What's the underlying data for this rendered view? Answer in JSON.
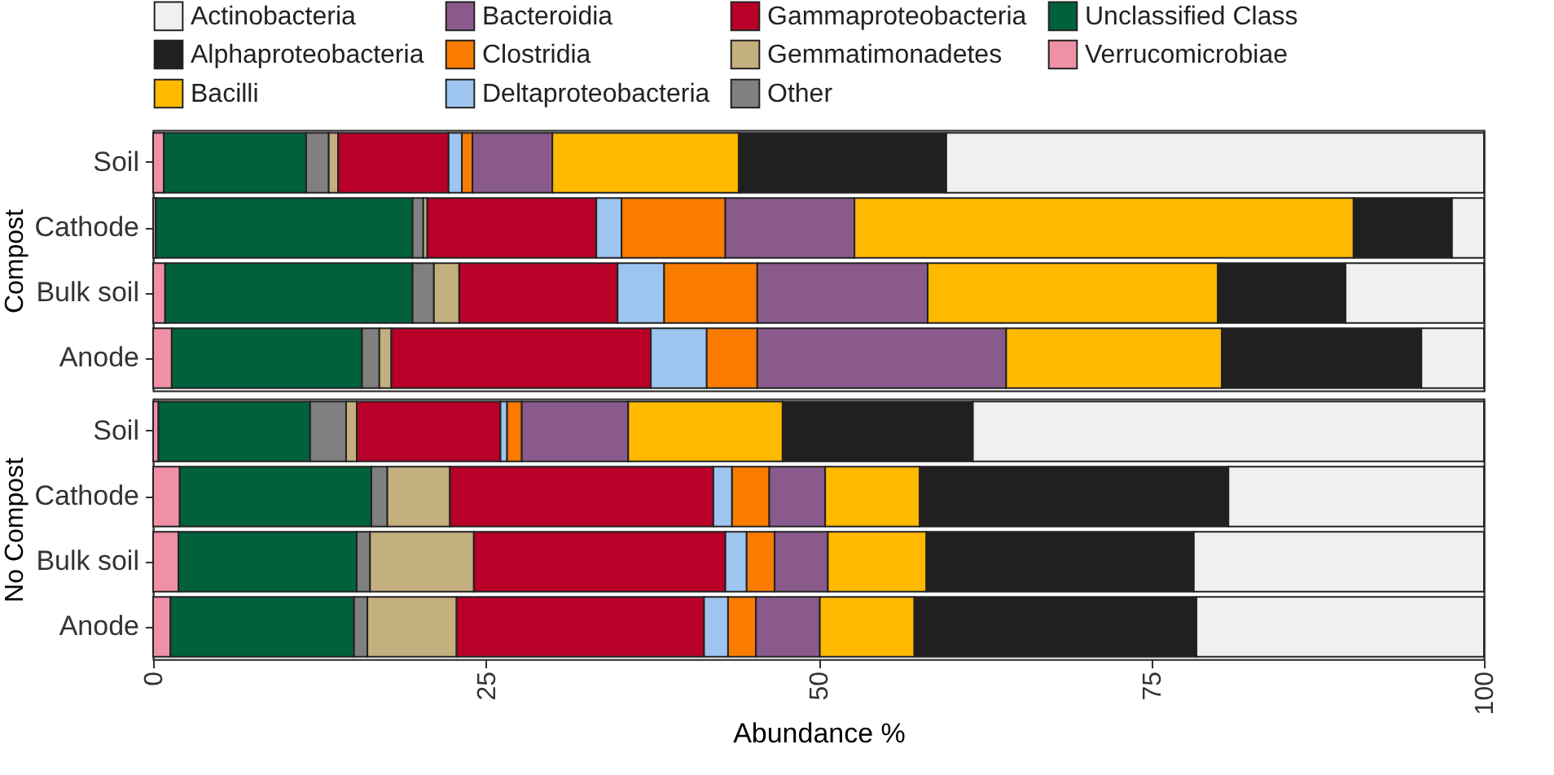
{
  "chart_data": [
    {
      "type": "bar",
      "orientation": "horizontal",
      "stacked": true,
      "ylabel": "Compost",
      "categories": [
        "Soil",
        "Cathode",
        "Bulk soil",
        "Anode"
      ],
      "xlim": [
        0,
        100
      ],
      "xticks": [
        0,
        25,
        50,
        75,
        100
      ],
      "tick_labels": "y",
      "legend": "top",
      "series": [
        {
          "name": "Verrucomicrobiae",
          "color": "#ef91a6",
          "values": [
            0.8,
            0.2,
            0.9,
            1.4
          ]
        },
        {
          "name": "Unclassified Class",
          "color": "#00613a",
          "values": [
            10.7,
            19.3,
            18.6,
            14.3
          ]
        },
        {
          "name": "Other",
          "color": "#808080",
          "values": [
            1.7,
            0.8,
            1.6,
            1.3
          ]
        },
        {
          "name": "Gemmatimonadetes",
          "color": "#c4b07f",
          "values": [
            0.7,
            0.3,
            1.9,
            0.9
          ]
        },
        {
          "name": "Gammaproteobacteria",
          "color": "#b80028",
          "values": [
            8.3,
            12.7,
            11.9,
            19.5
          ]
        },
        {
          "name": "Deltaproteobacteria",
          "color": "#9ec5f0",
          "values": [
            1.0,
            1.9,
            3.5,
            4.2
          ]
        },
        {
          "name": "Clostridia",
          "color": "#f97c00",
          "values": [
            0.8,
            7.8,
            7.0,
            3.8
          ]
        },
        {
          "name": "Bacteroidia",
          "color": "#8b5a8c",
          "values": [
            6.0,
            9.7,
            12.8,
            18.7
          ]
        },
        {
          "name": "Bacilli",
          "color": "#ffb900",
          "values": [
            14.0,
            37.5,
            21.8,
            16.2
          ]
        },
        {
          "name": "Alphaproteobacteria",
          "color": "#202020",
          "values": [
            15.6,
            7.4,
            9.6,
            15.0
          ]
        },
        {
          "name": "Actinobacteria",
          "color": "#f0f0f0",
          "values": [
            40.4,
            2.4,
            10.4,
            4.7
          ]
        }
      ]
    },
    {
      "type": "bar",
      "orientation": "horizontal",
      "stacked": true,
      "ylabel": "No Compost",
      "xlabel": "Abundance %",
      "categories": [
        "Soil",
        "Cathode",
        "Bulk soil",
        "Anode"
      ],
      "xlim": [
        0,
        100
      ],
      "xticks": [
        0,
        25,
        50,
        75,
        100
      ],
      "series": [
        {
          "name": "Verrucomicrobiae",
          "color": "#ef91a6",
          "values": [
            0.4,
            2.0,
            1.9,
            1.3
          ]
        },
        {
          "name": "Unclassified Class",
          "color": "#00613a",
          "values": [
            11.4,
            14.4,
            13.4,
            13.8
          ]
        },
        {
          "name": "Other",
          "color": "#808080",
          "values": [
            2.7,
            1.2,
            1.0,
            1.0
          ]
        },
        {
          "name": "Gemmatimonadetes",
          "color": "#c4b07f",
          "values": [
            0.8,
            4.7,
            7.8,
            6.7
          ]
        },
        {
          "name": "Gammaproteobacteria",
          "color": "#b80028",
          "values": [
            10.8,
            19.8,
            18.9,
            18.6
          ]
        },
        {
          "name": "Deltaproteobacteria",
          "color": "#9ec5f0",
          "values": [
            0.5,
            1.4,
            1.6,
            1.8
          ]
        },
        {
          "name": "Clostridia",
          "color": "#f97c00",
          "values": [
            1.1,
            2.8,
            2.1,
            2.1
          ]
        },
        {
          "name": "Bacteroidia",
          "color": "#8b5a8c",
          "values": [
            8.0,
            4.2,
            4.0,
            4.8
          ]
        },
        {
          "name": "Bacilli",
          "color": "#ffb900",
          "values": [
            11.6,
            7.1,
            7.4,
            7.1
          ]
        },
        {
          "name": "Alphaproteobacteria",
          "color": "#202020",
          "values": [
            14.3,
            23.2,
            20.1,
            21.2
          ]
        },
        {
          "name": "Actinobacteria",
          "color": "#f0f0f0",
          "values": [
            38.4,
            19.2,
            21.8,
            21.6
          ]
        }
      ]
    }
  ]
}
